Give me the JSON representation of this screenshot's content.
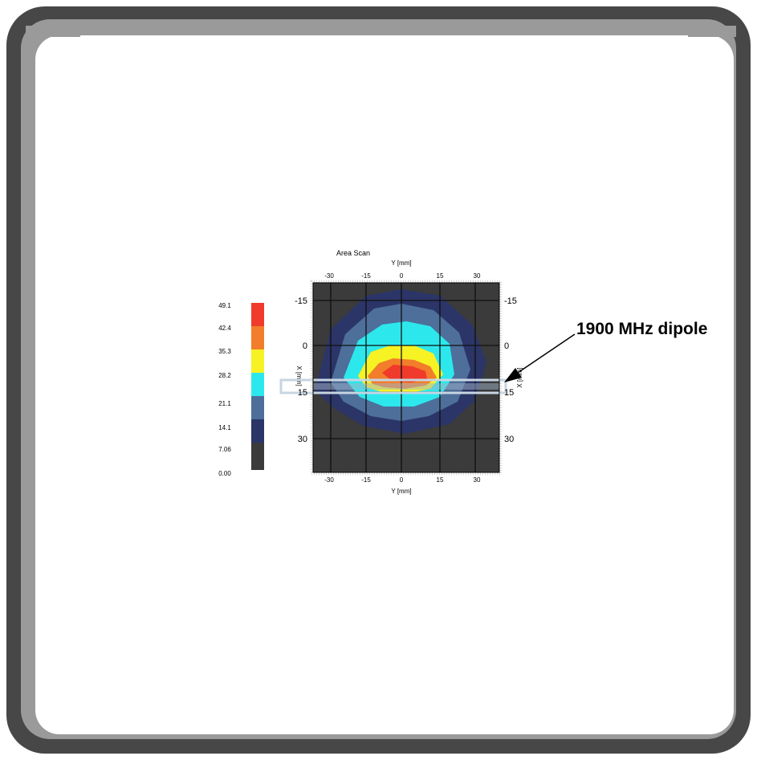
{
  "chart_data": {
    "type": "heatmap",
    "title": "Area Scan",
    "xlabel": "Y [mm]",
    "ylabel": "X [mm]",
    "right_axis_label": "X [mm]",
    "x_ticks": [
      "-30",
      "-15",
      "0",
      "15",
      "30"
    ],
    "y_ticks": [
      "-15",
      "0",
      "15",
      "30"
    ],
    "xlim": [
      -40,
      40
    ],
    "ylim": [
      -22,
      40
    ],
    "levels": [
      "49.1",
      "42.4",
      "35.3",
      "28.2",
      "21.1",
      "14.1",
      "7.06",
      "0.00"
    ],
    "level_colors": [
      "#f03a2b",
      "#f27d2a",
      "#f6f224",
      "#2ce8ec",
      "#4d6f9a",
      "#2b3568",
      "#3b3b3b"
    ],
    "annotation": "1900 MHz dipole"
  }
}
